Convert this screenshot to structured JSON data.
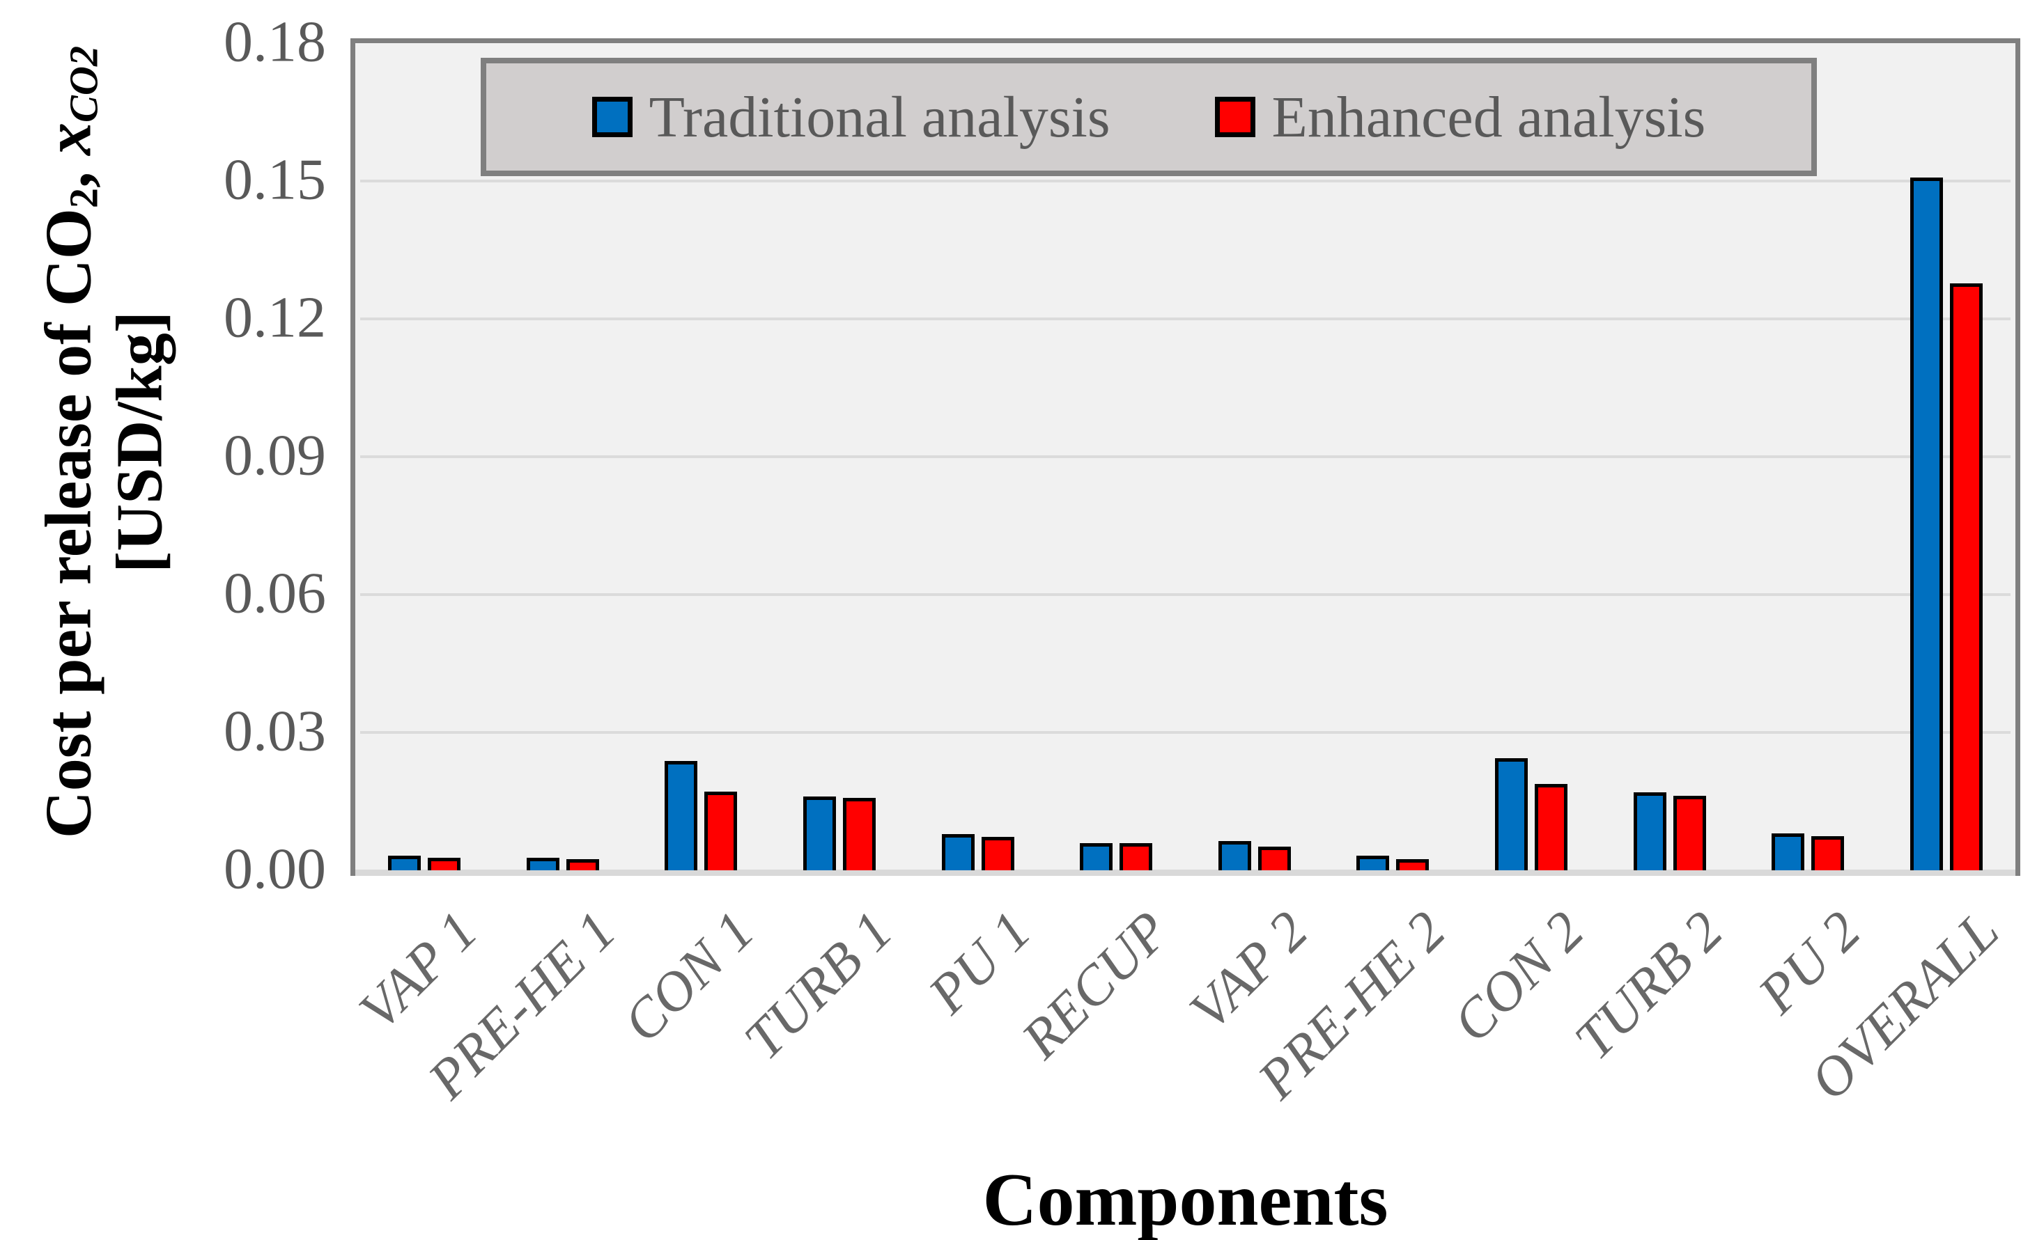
{
  "chart_data": {
    "type": "bar",
    "title": "",
    "xlabel": "Components",
    "ylabel": "Cost per release of CO2, x_CO2 [USD/kg]",
    "ylabel_parts": {
      "prefix": "Cost per release of CO",
      "co_sub": "2",
      "sep": ", ",
      "var": "x",
      "var_sub": "CO2",
      "line2": "[USD/kg]"
    },
    "categories": [
      "VAP 1",
      "PRE-HE 1",
      "CON 1",
      "TURB 1",
      "PU 1",
      "RECUP",
      "VAP 2",
      "PRE-HE 2",
      "CON 2",
      "TURB 2",
      "PU 2",
      "OVERALL"
    ],
    "series": [
      {
        "name": "Traditional analysis",
        "color": "#0070C0",
        "values": [
          0.0032,
          0.0028,
          0.0238,
          0.0161,
          0.0079,
          0.0059,
          0.0064,
          0.0032,
          0.0244,
          0.017,
          0.008,
          0.1507
        ]
      },
      {
        "name": "Enhanced analysis",
        "color": "#FF0000",
        "values": [
          0.0027,
          0.0024,
          0.0171,
          0.0158,
          0.0073,
          0.0059,
          0.0052,
          0.0024,
          0.0188,
          0.0162,
          0.0074,
          0.1277
        ]
      }
    ],
    "y_ticks": [
      "0.18",
      "0.15",
      "0.12",
      "0.09",
      "0.06",
      "0.03",
      "0.00"
    ],
    "ylim": [
      0,
      0.18
    ],
    "grid": true,
    "legend_position": "top-center"
  },
  "colors": {
    "traditional_blue": "#0070C0",
    "enhanced_red": "#FF0000",
    "plot_background": "#F1F1F1",
    "gridline": "#DBDBDB",
    "axis_border": "#7F7F7F",
    "baseline_band": "#D9D9D9",
    "legend_background": "#D1CECE",
    "tick_text": "#595959",
    "title_text": "#000000"
  }
}
